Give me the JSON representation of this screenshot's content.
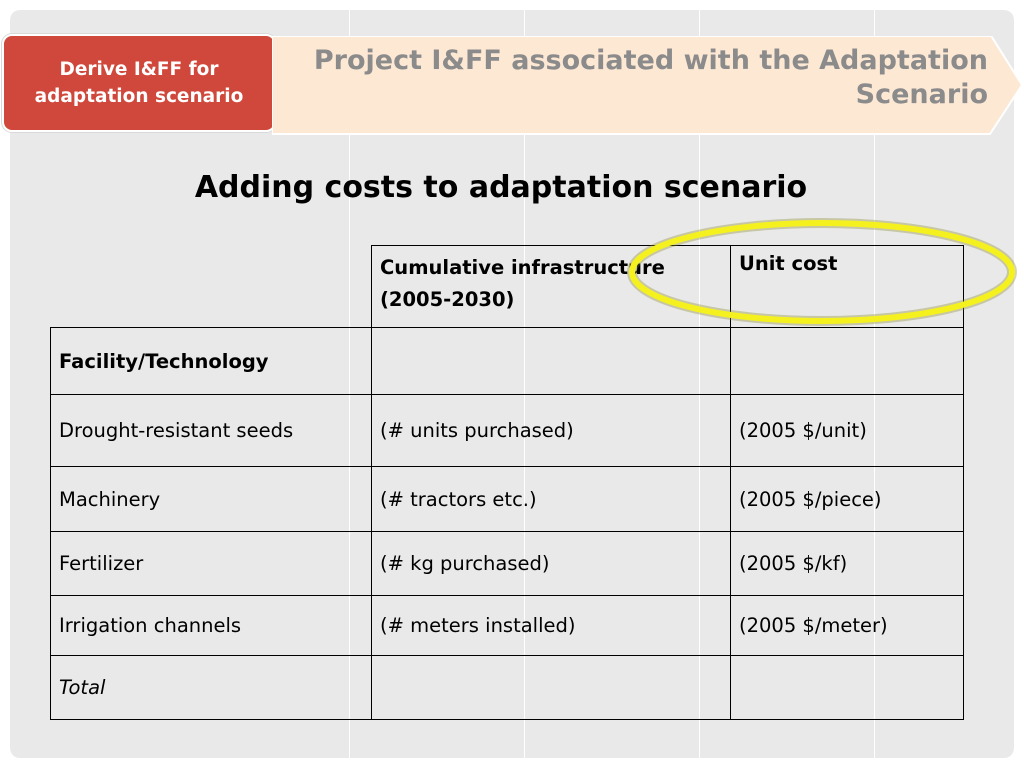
{
  "header": {
    "step_label": "Derive I&FF for adaptation scenario",
    "arrow_title": "Project I&FF associated with the Adaptation Scenario"
  },
  "subtitle": "Adding costs to adaptation scenario",
  "table": {
    "columns": [
      "Cumulative infrastructure (2005-2030)",
      "Unit cost"
    ],
    "section_label": "Facility/Technology",
    "rows": [
      {
        "item": "Drought-resistant seeds",
        "quantity": "(# units purchased)",
        "unit_cost": "(2005 $/unit)"
      },
      {
        "item": "Machinery",
        "quantity": "(# tractors etc.)",
        "unit_cost": "(2005 $/piece)"
      },
      {
        "item": "Fertilizer",
        "quantity": "(# kg purchased)",
        "unit_cost": "(2005 $/kf)"
      },
      {
        "item": "Irrigation channels",
        "quantity": "(# meters installed)",
        "unit_cost": "(2005 $/meter)"
      }
    ],
    "total_label": "Total"
  },
  "colors": {
    "step_box": "#d0483b",
    "arrow_fill": "#fde8d4",
    "arrow_text": "#8b8b8b",
    "highlight": "#f5f11f"
  }
}
